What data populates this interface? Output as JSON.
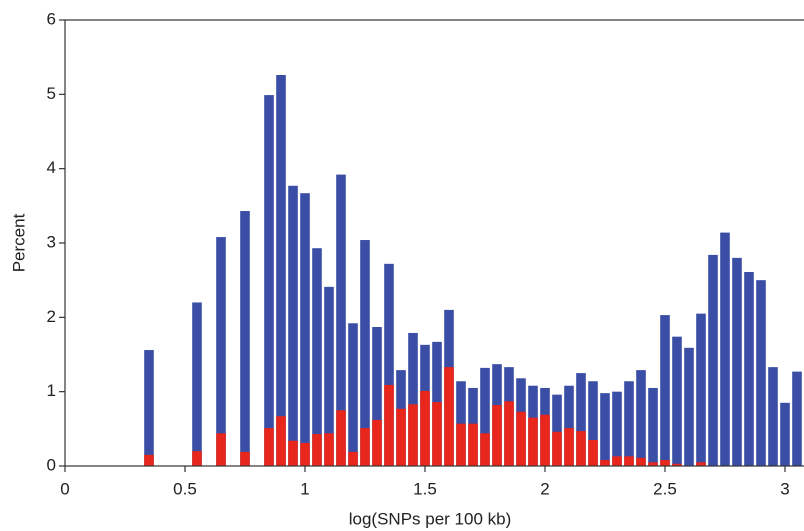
{
  "chart_data": {
    "type": "bar",
    "x_label": "log(SNPs per 100 kb)",
    "y_label": "Percent",
    "x": [
      0.35,
      0.55,
      0.65,
      0.75,
      0.85,
      0.9,
      0.95,
      1.0,
      1.05,
      1.1,
      1.15,
      1.2,
      1.25,
      1.3,
      1.35,
      1.4,
      1.45,
      1.5,
      1.55,
      1.6,
      1.65,
      1.7,
      1.75,
      1.8,
      1.85,
      1.9,
      1.95,
      2.0,
      2.05,
      2.1,
      2.15,
      2.2,
      2.25,
      2.3,
      2.35,
      2.4,
      2.45,
      2.5,
      2.55,
      2.6,
      2.65,
      2.7,
      2.75,
      2.8,
      2.85,
      2.9,
      2.95,
      3.0,
      3.05
    ],
    "series": [
      {
        "color": "#3a4ea6",
        "values": [
          1.56,
          2.2,
          3.08,
          3.43,
          4.99,
          5.26,
          3.77,
          3.67,
          2.93,
          2.41,
          3.92,
          1.92,
          3.04,
          1.87,
          2.72,
          1.29,
          1.79,
          1.63,
          1.67,
          2.1,
          1.14,
          1.05,
          1.32,
          1.37,
          1.33,
          1.18,
          1.08,
          1.05,
          0.96,
          1.08,
          1.25,
          1.14,
          0.98,
          1.0,
          1.14,
          1.29,
          1.05,
          2.03,
          1.74,
          1.59,
          2.05,
          2.84,
          3.14,
          2.8,
          2.61,
          2.5,
          1.33,
          0.85,
          1.27
        ]
      },
      {
        "color": "#e8261c",
        "values": [
          0.15,
          0.2,
          0.44,
          0.19,
          0.51,
          0.67,
          0.34,
          0.31,
          0.43,
          0.44,
          0.75,
          0.19,
          0.51,
          0.62,
          1.09,
          0.77,
          0.83,
          1.01,
          0.86,
          1.33,
          0.57,
          0.57,
          0.44,
          0.82,
          0.87,
          0.73,
          0.65,
          0.69,
          0.46,
          0.51,
          0.47,
          0.35,
          0.08,
          0.13,
          0.13,
          0.11,
          0.05,
          0.08,
          0.03,
          0,
          0.05,
          0,
          0,
          0,
          0,
          0,
          0,
          0,
          0
        ]
      }
    ],
    "xlim": [
      0,
      3.075
    ],
    "ylim": [
      0,
      6
    ],
    "xticks": [
      0,
      0.5,
      1,
      1.5,
      2,
      2.5,
      3
    ],
    "yticks": [
      0,
      1,
      2,
      3,
      4,
      5,
      6
    ]
  }
}
